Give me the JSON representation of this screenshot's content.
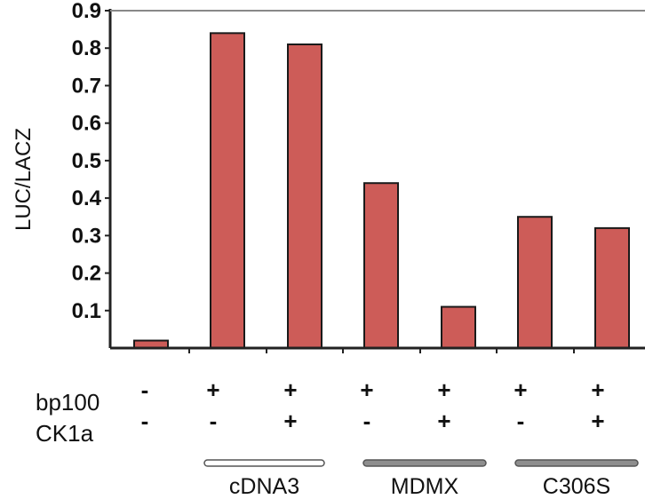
{
  "chart_data": {
    "type": "bar",
    "title": "",
    "ylabel": "LUC/LACZ",
    "xlabel": "",
    "ylim": [
      0,
      0.9
    ],
    "yticks": [
      "0.1",
      "0.2",
      "0.3",
      "0.4",
      "0.5",
      "0.6",
      "0.7",
      "0.8",
      "0.9"
    ],
    "values": [
      0.02,
      0.84,
      0.81,
      0.44,
      0.11,
      0.35,
      0.32
    ],
    "bar_color": "#cd5c58",
    "rows": [
      {
        "label": "bp100",
        "signs": [
          "-",
          "+",
          "+",
          "+",
          "+",
          "+",
          "+"
        ]
      },
      {
        "label": "CK1a",
        "signs": [
          "-",
          "-",
          "+",
          "-",
          "+",
          "-",
          "+"
        ]
      }
    ],
    "groups": [
      {
        "label": "cDNA3",
        "style": "open"
      },
      {
        "label": "MDMX",
        "style": "filled"
      },
      {
        "label": "C306S",
        "style": "filled"
      }
    ],
    "grid": false
  }
}
